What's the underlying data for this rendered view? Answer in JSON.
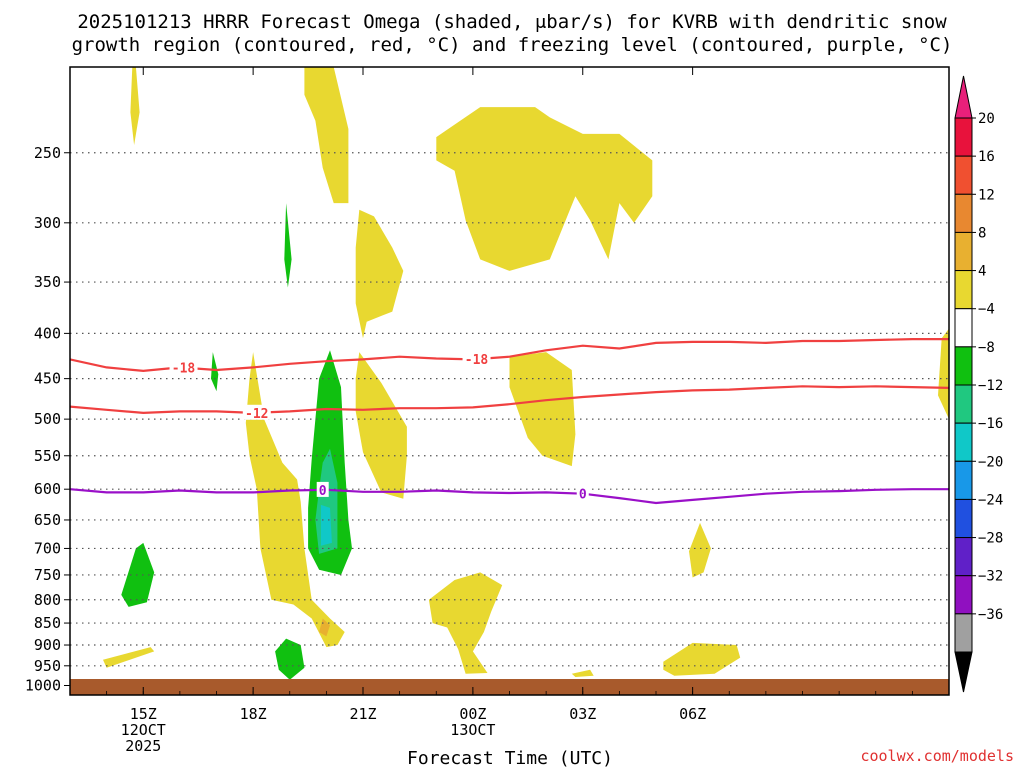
{
  "chart_data": {
    "type": "contour",
    "title_line1": "2025101213 HRRR Forecast Omega (shaded, μbar/s) for KVRB with dendritic snow",
    "title_line2": "growth region (contoured, red, °C) and freezing level (contoured, purple, °C)",
    "xlabel": "Forecast Time (UTC)",
    "credit": "coolwx.com/models",
    "x_range_hours": [
      13,
      37
    ],
    "y_range_hPa": [
      200,
      1025
    ],
    "x_ticks": [
      {
        "hour": 15,
        "line1": "15Z",
        "line2": "12OCT",
        "line3": "2025"
      },
      {
        "hour": 18,
        "line1": "18Z",
        "line2": "",
        "line3": ""
      },
      {
        "hour": 21,
        "line1": "21Z",
        "line2": "",
        "line3": ""
      },
      {
        "hour": 24,
        "line1": "00Z",
        "line2": "13OCT",
        "line3": ""
      },
      {
        "hour": 27,
        "line1": "03Z",
        "line2": "",
        "line3": ""
      },
      {
        "hour": 30,
        "line1": "06Z",
        "line2": "",
        "line3": ""
      }
    ],
    "y_ticks": [
      250,
      300,
      350,
      400,
      450,
      500,
      550,
      600,
      650,
      700,
      750,
      800,
      850,
      900,
      950,
      1000
    ],
    "colorbar": {
      "labels": [
        "20",
        "16",
        "12",
        "8",
        "4",
        "−4",
        "−8",
        "−12",
        "−16",
        "−20",
        "−24",
        "−28",
        "−32",
        "−36"
      ],
      "colors": [
        "#e8123c",
        "#f05030",
        "#e88830",
        "#e8b030",
        "#e8d830",
        "#ffffff",
        "#10c010",
        "#20c880",
        "#10c8c8",
        "#1898e8",
        "#2050e0",
        "#6020c8",
        "#9010c0",
        "#a0a0a0"
      ],
      "top_extend_color": "#e8207a",
      "bottom_extend_color": "#000000"
    },
    "omega_colors": {
      "up_weak": "#e8d830",
      "up_moderate": "#e8b030",
      "down_weak": "#10c010",
      "down_moderate": "#20c880",
      "down_strong": "#10c8c8"
    },
    "omega_regions": [
      {
        "color": "up_weak",
        "points": [
          [
            14.8,
            200
          ],
          [
            14.9,
            225
          ],
          [
            14.75,
            245
          ],
          [
            14.65,
            225
          ],
          [
            14.7,
            200
          ]
        ]
      },
      {
        "color": "up_weak",
        "points": [
          [
            19.4,
            200
          ],
          [
            20.2,
            200
          ],
          [
            20.6,
            235
          ],
          [
            20.6,
            285
          ],
          [
            20.2,
            285
          ],
          [
            19.9,
            260
          ],
          [
            19.7,
            230
          ],
          [
            19.4,
            215
          ]
        ]
      },
      {
        "color": "up_weak",
        "points": [
          [
            23.0,
            240
          ],
          [
            24.2,
            222
          ],
          [
            25.7,
            222
          ],
          [
            26.1,
            228
          ],
          [
            27.0,
            238
          ],
          [
            28.0,
            238
          ],
          [
            28.9,
            255
          ],
          [
            28.9,
            280
          ],
          [
            28.4,
            300
          ],
          [
            28.0,
            285
          ],
          [
            27.7,
            330
          ],
          [
            27.2,
            298
          ],
          [
            26.8,
            280
          ],
          [
            26.1,
            330
          ],
          [
            25.0,
            340
          ],
          [
            24.2,
            330
          ],
          [
            23.8,
            298
          ],
          [
            23.5,
            262
          ],
          [
            23.0,
            255
          ]
        ]
      },
      {
        "color": "up_weak",
        "points": [
          [
            20.9,
            290
          ],
          [
            21.3,
            295
          ],
          [
            21.8,
            320
          ],
          [
            22.1,
            340
          ],
          [
            21.8,
            378
          ],
          [
            21.1,
            388
          ],
          [
            21.0,
            405
          ],
          [
            20.8,
            370
          ],
          [
            20.8,
            320
          ]
        ]
      },
      {
        "color": "up_weak",
        "points": [
          [
            20.9,
            420
          ],
          [
            21.5,
            455
          ],
          [
            22.2,
            510
          ],
          [
            22.2,
            550
          ],
          [
            22.1,
            615
          ],
          [
            21.5,
            605
          ],
          [
            21.0,
            545
          ],
          [
            20.8,
            490
          ],
          [
            20.8,
            450
          ]
        ]
      },
      {
        "color": "up_weak",
        "points": [
          [
            18.0,
            420
          ],
          [
            18.3,
            500
          ],
          [
            18.8,
            560
          ],
          [
            19.2,
            585
          ],
          [
            19.3,
            620
          ],
          [
            19.4,
            700
          ],
          [
            19.6,
            800
          ],
          [
            20.1,
            840
          ],
          [
            20.5,
            870
          ],
          [
            20.3,
            900
          ],
          [
            20.0,
            905
          ],
          [
            19.6,
            840
          ],
          [
            19.1,
            810
          ],
          [
            18.5,
            800
          ],
          [
            18.2,
            700
          ],
          [
            18.1,
            600
          ],
          [
            17.9,
            550
          ],
          [
            17.8,
            505
          ],
          [
            17.9,
            450
          ]
        ]
      },
      {
        "color": "up_moderate",
        "points": [
          [
            19.9,
            840
          ],
          [
            20.1,
            855
          ],
          [
            20.0,
            880
          ],
          [
            19.8,
            870
          ]
        ]
      },
      {
        "color": "up_weak",
        "points": [
          [
            25.0,
            425
          ],
          [
            26.0,
            420
          ],
          [
            26.7,
            440
          ],
          [
            26.8,
            520
          ],
          [
            26.7,
            565
          ],
          [
            25.9,
            550
          ],
          [
            25.5,
            525
          ],
          [
            25.0,
            460
          ]
        ]
      },
      {
        "color": "up_weak",
        "points": [
          [
            22.8,
            800
          ],
          [
            23.5,
            760
          ],
          [
            24.2,
            745
          ],
          [
            24.8,
            770
          ],
          [
            24.5,
            825
          ],
          [
            24.3,
            870
          ],
          [
            24.0,
            915
          ],
          [
            24.4,
            968
          ],
          [
            23.8,
            970
          ],
          [
            23.6,
            910
          ],
          [
            23.3,
            860
          ],
          [
            22.9,
            850
          ]
        ]
      },
      {
        "color": "up_weak",
        "points": [
          [
            26.7,
            970
          ],
          [
            27.2,
            960
          ],
          [
            27.3,
            975
          ],
          [
            26.8,
            978
          ]
        ]
      },
      {
        "color": "up_weak",
        "points": [
          [
            29.2,
            940
          ],
          [
            30.0,
            895
          ],
          [
            31.2,
            900
          ],
          [
            31.3,
            930
          ],
          [
            30.6,
            970
          ],
          [
            29.5,
            975
          ],
          [
            29.2,
            960
          ]
        ]
      },
      {
        "color": "up_weak",
        "points": [
          [
            29.9,
            705
          ],
          [
            30.2,
            655
          ],
          [
            30.5,
            700
          ],
          [
            30.3,
            745
          ],
          [
            30.0,
            755
          ]
        ]
      },
      {
        "color": "up_weak",
        "points": [
          [
            36.8,
            405
          ],
          [
            37.0,
            395
          ],
          [
            37.0,
            500
          ],
          [
            36.7,
            470
          ]
        ]
      },
      {
        "color": "up_weak",
        "points": [
          [
            13.9,
            935
          ],
          [
            15.2,
            905
          ],
          [
            15.3,
            915
          ],
          [
            14.0,
            955
          ]
        ]
      },
      {
        "color": "down_weak",
        "points": [
          [
            18.9,
            285
          ],
          [
            19.05,
            330
          ],
          [
            18.95,
            355
          ],
          [
            18.85,
            330
          ]
        ]
      },
      {
        "color": "down_weak",
        "points": [
          [
            16.9,
            420
          ],
          [
            17.05,
            445
          ],
          [
            17.0,
            465
          ],
          [
            16.85,
            450
          ]
        ]
      },
      {
        "color": "down_weak",
        "points": [
          [
            14.4,
            790
          ],
          [
            14.8,
            700
          ],
          [
            15.0,
            690
          ],
          [
            15.3,
            745
          ],
          [
            15.1,
            805
          ],
          [
            14.6,
            815
          ]
        ]
      },
      {
        "color": "down_weak",
        "points": [
          [
            19.8,
            450
          ],
          [
            20.1,
            418
          ],
          [
            20.4,
            460
          ],
          [
            20.5,
            560
          ],
          [
            20.6,
            650
          ],
          [
            20.7,
            700
          ],
          [
            20.4,
            750
          ],
          [
            19.8,
            740
          ],
          [
            19.5,
            700
          ],
          [
            19.5,
            630
          ],
          [
            19.6,
            555
          ]
        ]
      },
      {
        "color": "down_moderate",
        "points": [
          [
            19.9,
            560
          ],
          [
            20.1,
            540
          ],
          [
            20.3,
            590
          ],
          [
            20.3,
            700
          ],
          [
            19.8,
            710
          ],
          [
            19.7,
            650
          ],
          [
            19.8,
            600
          ]
        ]
      },
      {
        "color": "down_strong",
        "points": [
          [
            19.85,
            625
          ],
          [
            20.1,
            630
          ],
          [
            20.15,
            690
          ],
          [
            19.85,
            695
          ]
        ]
      },
      {
        "color": "down_weak",
        "points": [
          [
            18.6,
            915
          ],
          [
            18.9,
            885
          ],
          [
            19.3,
            900
          ],
          [
            19.4,
            955
          ],
          [
            19.0,
            985
          ],
          [
            18.7,
            960
          ]
        ]
      }
    ],
    "contour_lines": [
      {
        "name": "dgz-minus18",
        "label": "-18",
        "color": "#f04040",
        "points": [
          [
            13,
            428
          ],
          [
            14,
            437
          ],
          [
            15,
            441
          ],
          [
            16,
            437
          ],
          [
            17,
            440
          ],
          [
            18,
            437
          ],
          [
            19,
            433
          ],
          [
            20,
            430
          ],
          [
            21,
            428
          ],
          [
            22,
            425
          ],
          [
            23,
            427
          ],
          [
            24,
            428
          ],
          [
            25,
            425
          ],
          [
            26,
            418
          ],
          [
            27,
            413
          ],
          [
            28,
            416
          ],
          [
            29,
            410
          ],
          [
            30,
            409
          ],
          [
            31,
            409
          ],
          [
            32,
            410
          ],
          [
            33,
            408
          ],
          [
            34,
            408
          ],
          [
            35,
            407
          ],
          [
            36,
            406
          ],
          [
            37,
            406
          ]
        ],
        "label_hours": [
          16.1,
          24.1
        ]
      },
      {
        "name": "dgz-minus12",
        "label": "-12",
        "color": "#f04040",
        "points": [
          [
            13,
            484
          ],
          [
            14,
            488
          ],
          [
            15,
            492
          ],
          [
            16,
            490
          ],
          [
            17,
            490
          ],
          [
            18,
            492
          ],
          [
            19,
            490
          ],
          [
            20,
            487
          ],
          [
            21,
            488
          ],
          [
            22,
            486
          ],
          [
            23,
            486
          ],
          [
            24,
            485
          ],
          [
            25,
            481
          ],
          [
            26,
            476
          ],
          [
            27,
            472
          ],
          [
            28,
            469
          ],
          [
            29,
            466
          ],
          [
            30,
            464
          ],
          [
            31,
            463
          ],
          [
            32,
            461
          ],
          [
            33,
            459
          ],
          [
            34,
            460
          ],
          [
            35,
            459
          ],
          [
            36,
            460
          ],
          [
            37,
            461
          ]
        ],
        "label_hours": [
          18.1
        ]
      },
      {
        "name": "freezing-level",
        "label": "0",
        "color": "#9a10c8",
        "points": [
          [
            13,
            600
          ],
          [
            14,
            605
          ],
          [
            15,
            605
          ],
          [
            16,
            602
          ],
          [
            17,
            605
          ],
          [
            18,
            605
          ],
          [
            19,
            602
          ],
          [
            20,
            601
          ],
          [
            21,
            604
          ],
          [
            22,
            604
          ],
          [
            23,
            602
          ],
          [
            24,
            605
          ],
          [
            25,
            606
          ],
          [
            26,
            605
          ],
          [
            27,
            607
          ],
          [
            28,
            614
          ],
          [
            29,
            622
          ],
          [
            30,
            617
          ],
          [
            31,
            612
          ],
          [
            32,
            607
          ],
          [
            33,
            604
          ],
          [
            34,
            603
          ],
          [
            35,
            601
          ],
          [
            36,
            600
          ],
          [
            37,
            600
          ]
        ],
        "label_hours": [
          19.9,
          27.0
        ]
      }
    ]
  }
}
